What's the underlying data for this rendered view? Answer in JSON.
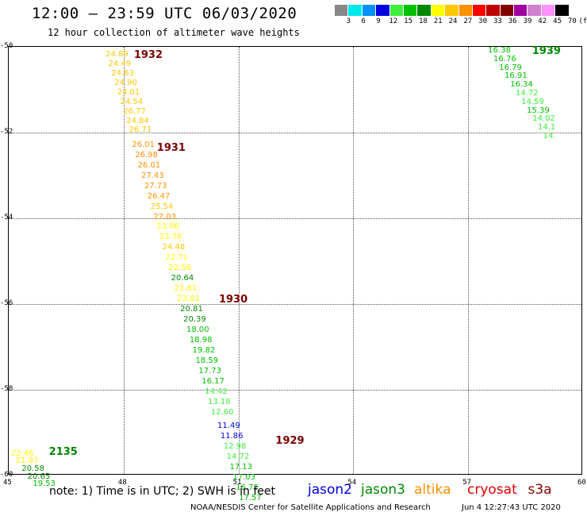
{
  "header": {
    "title": "12:00 — 23:59 UTC 06/03/2020",
    "subtitle": "12 hour collection of altimeter wave heights"
  },
  "color_scale": {
    "colors": [
      "#888888",
      "#00e8e8",
      "#0090ff",
      "#0000e0",
      "#40ee40",
      "#00c000",
      "#008800",
      "#ffff00",
      "#ffc800",
      "#ff9000",
      "#ff0000",
      "#c00000",
      "#800000",
      "#a000a0",
      "#d080d0",
      "#ff90ff",
      "#000000"
    ],
    "labels": [
      "3",
      "6",
      "9",
      "12",
      "15",
      "18",
      "21",
      "24",
      "27",
      "30",
      "33",
      "36",
      "39",
      "42",
      "45",
      "70",
      "(ft)"
    ]
  },
  "axes": {
    "x_ticks": [
      "45",
      "48",
      "51",
      "54",
      "57",
      "60"
    ],
    "y_ticks": [
      "-50",
      "-52",
      "-54",
      "-56",
      "-58",
      "-60"
    ]
  },
  "chart_data": {
    "type": "scatter",
    "x_range": [
      45,
      60
    ],
    "y_range": [
      -50,
      -60
    ],
    "passes": [
      {
        "label": "1932",
        "x": 48.27,
        "y": -50.1
      },
      {
        "label": "1931",
        "x": 48.87,
        "y": -52.25
      },
      {
        "label": "1930",
        "x": 50.49,
        "y": -55.8
      },
      {
        "label": "1929",
        "x": 51.97,
        "y": -59.1
      },
      {
        "label": "1939",
        "x": 58.67,
        "y": -50.0
      },
      {
        "label": "2135",
        "x": 46.05,
        "y": -59.35
      }
    ],
    "points": [
      {
        "v": "24.89",
        "x": 47.53,
        "y": -50.1,
        "c": "#ffc800"
      },
      {
        "v": "24.49",
        "x": 47.6,
        "y": -50.32,
        "c": "#ffc800"
      },
      {
        "v": "24.63",
        "x": 47.68,
        "y": -50.54,
        "c": "#ffc800"
      },
      {
        "v": "24.90",
        "x": 47.76,
        "y": -50.76,
        "c": "#ffc800"
      },
      {
        "v": "24.01",
        "x": 47.83,
        "y": -50.98,
        "c": "#ffc800"
      },
      {
        "v": "24.54",
        "x": 47.91,
        "y": -51.2,
        "c": "#ffc800"
      },
      {
        "v": "26.77",
        "x": 47.99,
        "y": -51.42,
        "c": "#ffc800"
      },
      {
        "v": "24.84",
        "x": 48.07,
        "y": -51.64,
        "c": "#ffc800"
      },
      {
        "v": "26.71",
        "x": 48.14,
        "y": -51.86,
        "c": "#ffc800"
      },
      {
        "v": "26.01",
        "x": 48.22,
        "y": -52.2,
        "c": "#ff9000"
      },
      {
        "v": "26.98",
        "x": 48.3,
        "y": -52.44,
        "c": "#ff9000"
      },
      {
        "v": "26.01",
        "x": 48.37,
        "y": -52.68,
        "c": "#ff9000"
      },
      {
        "v": "27.43",
        "x": 48.46,
        "y": -52.92,
        "c": "#ff9000"
      },
      {
        "v": "27.73",
        "x": 48.54,
        "y": -53.16,
        "c": "#ff9000"
      },
      {
        "v": "26.47",
        "x": 48.62,
        "y": -53.4,
        "c": "#ff9000"
      },
      {
        "v": "25.54",
        "x": 48.7,
        "y": -53.64,
        "c": "#ffc800"
      },
      {
        "v": "27.03",
        "x": 48.78,
        "y": -53.88,
        "c": "#ff9000"
      },
      {
        "v": "23.08",
        "x": 48.86,
        "y": -54.12,
        "c": "#ffff00"
      },
      {
        "v": "23.76",
        "x": 48.93,
        "y": -54.36,
        "c": "#ffff00"
      },
      {
        "v": "24.48",
        "x": 49.01,
        "y": -54.6,
        "c": "#ffc800"
      },
      {
        "v": "22.71",
        "x": 49.09,
        "y": -54.84,
        "c": "#ffff00"
      },
      {
        "v": "22.56",
        "x": 49.17,
        "y": -55.08,
        "c": "#ffff00"
      },
      {
        "v": "20.64",
        "x": 49.24,
        "y": -55.32,
        "c": "#008800"
      },
      {
        "v": "21.81",
        "x": 49.32,
        "y": -55.56,
        "c": "#ffff00"
      },
      {
        "v": "23.81",
        "x": 49.4,
        "y": -55.8,
        "c": "#ffff00"
      },
      {
        "v": "20.81",
        "x": 49.48,
        "y": -56.04,
        "c": "#008800"
      },
      {
        "v": "20.39",
        "x": 49.56,
        "y": -56.28,
        "c": "#008800"
      },
      {
        "v": "18.00",
        "x": 49.64,
        "y": -56.52,
        "c": "#00c000"
      },
      {
        "v": "18.98",
        "x": 49.72,
        "y": -56.76,
        "c": "#00c000"
      },
      {
        "v": "19.82",
        "x": 49.8,
        "y": -57.0,
        "c": "#00c000"
      },
      {
        "v": "18.59",
        "x": 49.88,
        "y": -57.24,
        "c": "#00c000"
      },
      {
        "v": "17.73",
        "x": 49.96,
        "y": -57.48,
        "c": "#00c000"
      },
      {
        "v": "16.17",
        "x": 50.04,
        "y": -57.72,
        "c": "#00c000"
      },
      {
        "v": "14.42",
        "x": 50.12,
        "y": -57.96,
        "c": "#40ee40"
      },
      {
        "v": "13.18",
        "x": 50.2,
        "y": -58.2,
        "c": "#40ee40"
      },
      {
        "v": "12.60",
        "x": 50.28,
        "y": -58.44,
        "c": "#40ee40"
      },
      {
        "v": "11.49",
        "x": 50.45,
        "y": -58.76,
        "c": "#0000e0"
      },
      {
        "v": "11.86",
        "x": 50.53,
        "y": -59.0,
        "c": "#0000e0"
      },
      {
        "v": "12.98",
        "x": 50.61,
        "y": -59.24,
        "c": "#40ee40"
      },
      {
        "v": "14.72",
        "x": 50.69,
        "y": -59.48,
        "c": "#40ee40"
      },
      {
        "v": "17.13",
        "x": 50.77,
        "y": -59.72,
        "c": "#00c000"
      },
      {
        "v": "17.03",
        "x": 50.85,
        "y": -59.96,
        "c": "#00c000"
      },
      {
        "v": "16.75",
        "x": 50.93,
        "y": -60.2,
        "c": "#00c000"
      },
      {
        "v": "17.57",
        "x": 51.01,
        "y": -60.44,
        "c": "#00c000"
      },
      {
        "v": "16.38",
        "x": 57.52,
        "y": -50.0,
        "c": "#00c000"
      },
      {
        "v": "16.76",
        "x": 57.66,
        "y": -50.2,
        "c": "#00c000"
      },
      {
        "v": "16.79",
        "x": 57.81,
        "y": -50.4,
        "c": "#00c000"
      },
      {
        "v": "16.91",
        "x": 57.95,
        "y": -50.6,
        "c": "#00c000"
      },
      {
        "v": "16.34",
        "x": 58.1,
        "y": -50.8,
        "c": "#00c000"
      },
      {
        "v": "14.72",
        "x": 58.24,
        "y": -51.0,
        "c": "#40ee40"
      },
      {
        "v": "14.59",
        "x": 58.39,
        "y": -51.2,
        "c": "#40ee40"
      },
      {
        "v": "15.39",
        "x": 58.53,
        "y": -51.4,
        "c": "#00c000"
      },
      {
        "v": "14.02",
        "x": 58.68,
        "y": -51.6,
        "c": "#40ee40"
      },
      {
        "v": "14.1",
        "x": 58.82,
        "y": -51.8,
        "c": "#40ee40"
      },
      {
        "v": "14.",
        "x": 58.96,
        "y": -52.0,
        "c": "#40ee40"
      },
      {
        "v": "22.46",
        "x": 45.06,
        "y": -59.4,
        "c": "#ffff00"
      },
      {
        "v": "21.87",
        "x": 45.18,
        "y": -59.58,
        "c": "#ffff00"
      },
      {
        "v": "20.58",
        "x": 45.34,
        "y": -59.76,
        "c": "#008800"
      },
      {
        "v": "20.65",
        "x": 45.49,
        "y": -59.94,
        "c": "#008800"
      },
      {
        "v": "19.53",
        "x": 45.63,
        "y": -60.12,
        "c": "#00c000"
      }
    ]
  },
  "footer": {
    "note": "note: 1) Time is in UTC; 2) SWH is in feet",
    "legend": [
      {
        "name": "jason2",
        "color": "#0000e0"
      },
      {
        "name": "jason3",
        "color": "#008800"
      },
      {
        "name": "altika",
        "color": "#ff9000"
      },
      {
        "name": "cryosat",
        "color": "#e00000"
      },
      {
        "name": "s3a",
        "color": "#800000"
      }
    ],
    "credit": "NOAA/NESDIS Center for Satellite Applications and Research",
    "timestamp": "Jun  4 12:27:43 UTC 2020"
  }
}
